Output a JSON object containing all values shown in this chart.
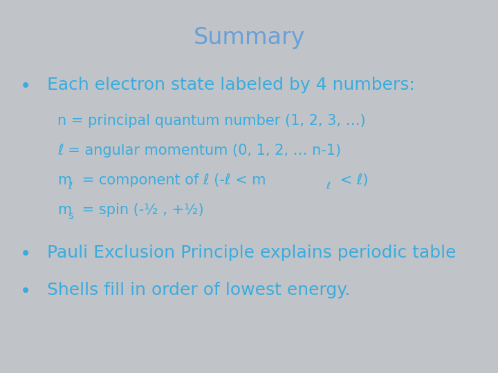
{
  "background_color": "#c0c4c8",
  "title": "Summary",
  "title_color": "#6a9fd8",
  "title_fontsize": 24,
  "bullet_color": "#3aabde",
  "sub_color": "#3aabde",
  "bullet1": "Each electron state labeled by 4 numbers:",
  "bullet1_fontsize": 18,
  "sub1": "n = principal quantum number (1, 2, 3, …)",
  "sub2": "ℓ = angular momentum (0, 1, 2, … n-1)",
  "sub_fontsize": 15,
  "bullet2": "Pauli Exclusion Principle explains periodic table",
  "bullet2_fontsize": 18,
  "bullet3": "Shells fill in order of lowest energy.",
  "bullet3_fontsize": 18,
  "fig_width": 7.2,
  "fig_height": 5.4,
  "dpi": 100
}
